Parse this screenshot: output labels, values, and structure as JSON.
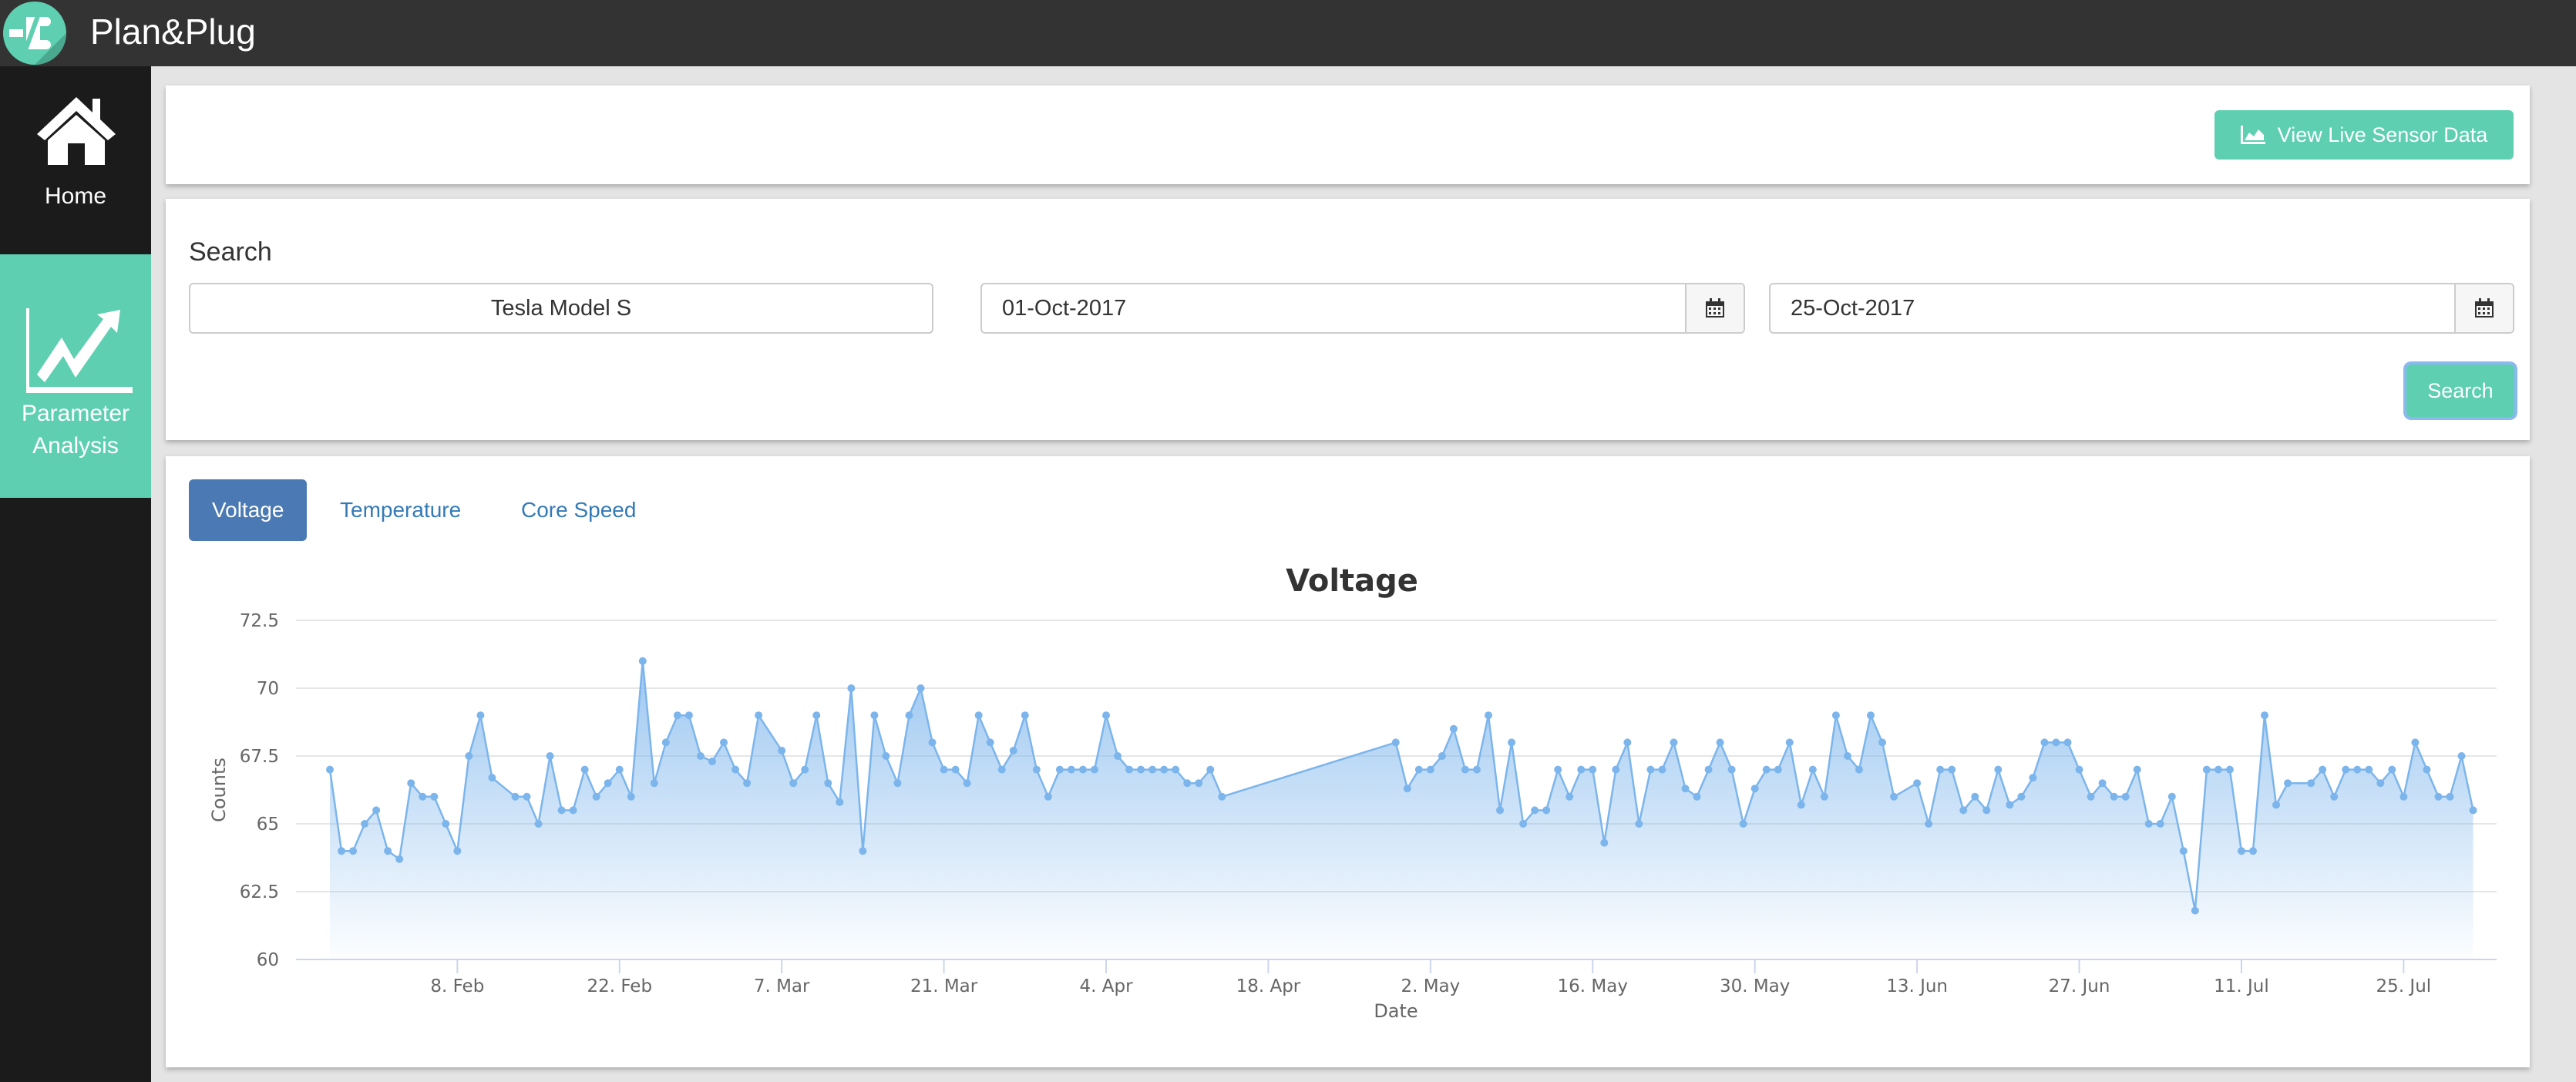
{
  "app": {
    "title": "Plan&Plug"
  },
  "sidebar": {
    "items": [
      {
        "label": "Home",
        "icon": "home-icon"
      },
      {
        "label_line1": "Parameter",
        "label_line2": "Analysis",
        "icon": "trending-up-chart-icon",
        "active": true
      }
    ]
  },
  "toolbar": {
    "live_button": "View Live Sensor Data",
    "live_icon": "area-chart-icon"
  },
  "search": {
    "label": "Search",
    "vehicle": "Tesla Model S",
    "start_date": "01-Oct-2017",
    "end_date": "25-Oct-2017",
    "button": "Search"
  },
  "tabs": [
    {
      "label": "Voltage",
      "active": true
    },
    {
      "label": "Temperature"
    },
    {
      "label": "Core Speed"
    }
  ],
  "colors": {
    "accent": "#5ecfb1",
    "series": "#7cb5ec",
    "tab_active": "#4a79b3",
    "link": "#337ab7"
  },
  "chart_data": {
    "type": "area",
    "title": "Voltage",
    "xlabel": "Date",
    "ylabel": "Counts",
    "ylim": [
      60,
      72.5
    ],
    "grid": true,
    "yticks": [
      "60",
      "62.5",
      "65",
      "67.5",
      "70",
      "72.5"
    ],
    "xticks": [
      {
        "label": "8. Feb",
        "date": "02-08"
      },
      {
        "label": "22. Feb",
        "date": "02-22"
      },
      {
        "label": "7. Mar",
        "date": "03-07"
      },
      {
        "label": "21. Mar",
        "date": "03-21"
      },
      {
        "label": "4. Apr",
        "date": "04-04"
      },
      {
        "label": "18. Apr",
        "date": "04-18"
      },
      {
        "label": "2. May",
        "date": "05-02"
      },
      {
        "label": "16. May",
        "date": "05-16"
      },
      {
        "label": "30. May",
        "date": "05-30"
      },
      {
        "label": "13. Jun",
        "date": "06-13"
      },
      {
        "label": "27. Jun",
        "date": "06-27"
      },
      {
        "label": "11. Jul",
        "date": "07-11"
      },
      {
        "label": "25. Jul",
        "date": "07-25"
      }
    ],
    "points": [
      [
        "01-28",
        67
      ],
      [
        "01-29",
        64
      ],
      [
        "01-30",
        64
      ],
      [
        "01-31",
        65
      ],
      [
        "02-01",
        65.5
      ],
      [
        "02-02",
        64
      ],
      [
        "02-03",
        63.7
      ],
      [
        "02-04",
        66.5
      ],
      [
        "02-05",
        66
      ],
      [
        "02-06",
        66
      ],
      [
        "02-07",
        65
      ],
      [
        "02-08",
        64
      ],
      [
        "02-09",
        67.5
      ],
      [
        "02-10",
        69
      ],
      [
        "02-11",
        66.7
      ],
      [
        "02-13",
        66
      ],
      [
        "02-14",
        66
      ],
      [
        "02-15",
        65
      ],
      [
        "02-16",
        67.5
      ],
      [
        "02-17",
        65.5
      ],
      [
        "02-18",
        65.5
      ],
      [
        "02-19",
        67
      ],
      [
        "02-20",
        66
      ],
      [
        "02-21",
        66.5
      ],
      [
        "02-22",
        67
      ],
      [
        "02-23",
        66
      ],
      [
        "02-24",
        71
      ],
      [
        "02-25",
        66.5
      ],
      [
        "02-26",
        68
      ],
      [
        "02-27",
        69
      ],
      [
        "02-28",
        69
      ],
      [
        "02-29",
        67.5
      ],
      [
        "03-01",
        67.3
      ],
      [
        "03-02",
        68
      ],
      [
        "03-03",
        67
      ],
      [
        "03-04",
        66.5
      ],
      [
        "03-05",
        69
      ],
      [
        "03-07",
        67.7
      ],
      [
        "03-08",
        66.5
      ],
      [
        "03-09",
        67
      ],
      [
        "03-10",
        69
      ],
      [
        "03-11",
        66.5
      ],
      [
        "03-12",
        65.8
      ],
      [
        "03-13",
        70
      ],
      [
        "03-14",
        64
      ],
      [
        "03-15",
        69
      ],
      [
        "03-16",
        67.5
      ],
      [
        "03-17",
        66.5
      ],
      [
        "03-18",
        69
      ],
      [
        "03-19",
        70
      ],
      [
        "03-20",
        68
      ],
      [
        "03-21",
        67
      ],
      [
        "03-22",
        67
      ],
      [
        "03-23",
        66.5
      ],
      [
        "03-24",
        69
      ],
      [
        "03-25",
        68
      ],
      [
        "03-26",
        67
      ],
      [
        "03-27",
        67.7
      ],
      [
        "03-28",
        69
      ],
      [
        "03-29",
        67
      ],
      [
        "03-30",
        66
      ],
      [
        "03-31",
        67
      ],
      [
        "04-01",
        67
      ],
      [
        "04-02",
        67
      ],
      [
        "04-03",
        67
      ],
      [
        "04-04",
        69
      ],
      [
        "04-05",
        67.5
      ],
      [
        "04-06",
        67
      ],
      [
        "04-07",
        67
      ],
      [
        "04-08",
        67
      ],
      [
        "04-09",
        67
      ],
      [
        "04-10",
        67
      ],
      [
        "04-11",
        66.5
      ],
      [
        "04-12",
        66.5
      ],
      [
        "04-13",
        67
      ],
      [
        "04-14",
        66
      ],
      [
        "04-29",
        68
      ],
      [
        "04-30",
        66.3
      ],
      [
        "05-01",
        67
      ],
      [
        "05-02",
        67
      ],
      [
        "05-03",
        67.5
      ],
      [
        "05-04",
        68.5
      ],
      [
        "05-05",
        67
      ],
      [
        "05-06",
        67
      ],
      [
        "05-07",
        69
      ],
      [
        "05-08",
        65.5
      ],
      [
        "05-09",
        68
      ],
      [
        "05-10",
        65
      ],
      [
        "05-11",
        65.5
      ],
      [
        "05-12",
        65.5
      ],
      [
        "05-13",
        67
      ],
      [
        "05-14",
        66
      ],
      [
        "05-15",
        67
      ],
      [
        "05-16",
        67
      ],
      [
        "05-17",
        64.3
      ],
      [
        "05-18",
        67
      ],
      [
        "05-19",
        68
      ],
      [
        "05-20",
        65
      ],
      [
        "05-21",
        67
      ],
      [
        "05-22",
        67
      ],
      [
        "05-23",
        68
      ],
      [
        "05-24",
        66.3
      ],
      [
        "05-25",
        66
      ],
      [
        "05-26",
        67
      ],
      [
        "05-27",
        68
      ],
      [
        "05-28",
        67
      ],
      [
        "05-29",
        65
      ],
      [
        "05-30",
        66.3
      ],
      [
        "05-31",
        67
      ],
      [
        "06-01",
        67
      ],
      [
        "06-02",
        68
      ],
      [
        "06-03",
        65.7
      ],
      [
        "06-04",
        67
      ],
      [
        "06-05",
        66
      ],
      [
        "06-06",
        69
      ],
      [
        "06-07",
        67.5
      ],
      [
        "06-08",
        67
      ],
      [
        "06-09",
        69
      ],
      [
        "06-10",
        68
      ],
      [
        "06-11",
        66
      ],
      [
        "06-13",
        66.5
      ],
      [
        "06-14",
        65
      ],
      [
        "06-15",
        67
      ],
      [
        "06-16",
        67
      ],
      [
        "06-17",
        65.5
      ],
      [
        "06-18",
        66
      ],
      [
        "06-19",
        65.5
      ],
      [
        "06-20",
        67
      ],
      [
        "06-21",
        65.7
      ],
      [
        "06-22",
        66
      ],
      [
        "06-23",
        66.7
      ],
      [
        "06-24",
        68
      ],
      [
        "06-25",
        68
      ],
      [
        "06-26",
        68
      ],
      [
        "06-27",
        67
      ],
      [
        "06-28",
        66
      ],
      [
        "06-29",
        66.5
      ],
      [
        "06-30",
        66
      ],
      [
        "07-01",
        66
      ],
      [
        "07-02",
        67
      ],
      [
        "07-03",
        65
      ],
      [
        "07-04",
        65
      ],
      [
        "07-05",
        66
      ],
      [
        "07-06",
        64
      ],
      [
        "07-07",
        61.8
      ],
      [
        "07-08",
        67
      ],
      [
        "07-09",
        67
      ],
      [
        "07-10",
        67
      ],
      [
        "07-11",
        64
      ],
      [
        "07-12",
        64
      ],
      [
        "07-13",
        69
      ],
      [
        "07-14",
        65.7
      ],
      [
        "07-15",
        66.5
      ],
      [
        "07-17",
        66.5
      ],
      [
        "07-18",
        67
      ],
      [
        "07-19",
        66
      ],
      [
        "07-20",
        67
      ],
      [
        "07-21",
        67
      ],
      [
        "07-22",
        67
      ],
      [
        "07-23",
        66.5
      ],
      [
        "07-24",
        67
      ],
      [
        "07-25",
        66
      ],
      [
        "07-26",
        68
      ],
      [
        "07-27",
        67
      ],
      [
        "07-28",
        66
      ],
      [
        "07-29",
        66
      ],
      [
        "07-30",
        67.5
      ],
      [
        "07-31",
        65.5
      ]
    ]
  }
}
